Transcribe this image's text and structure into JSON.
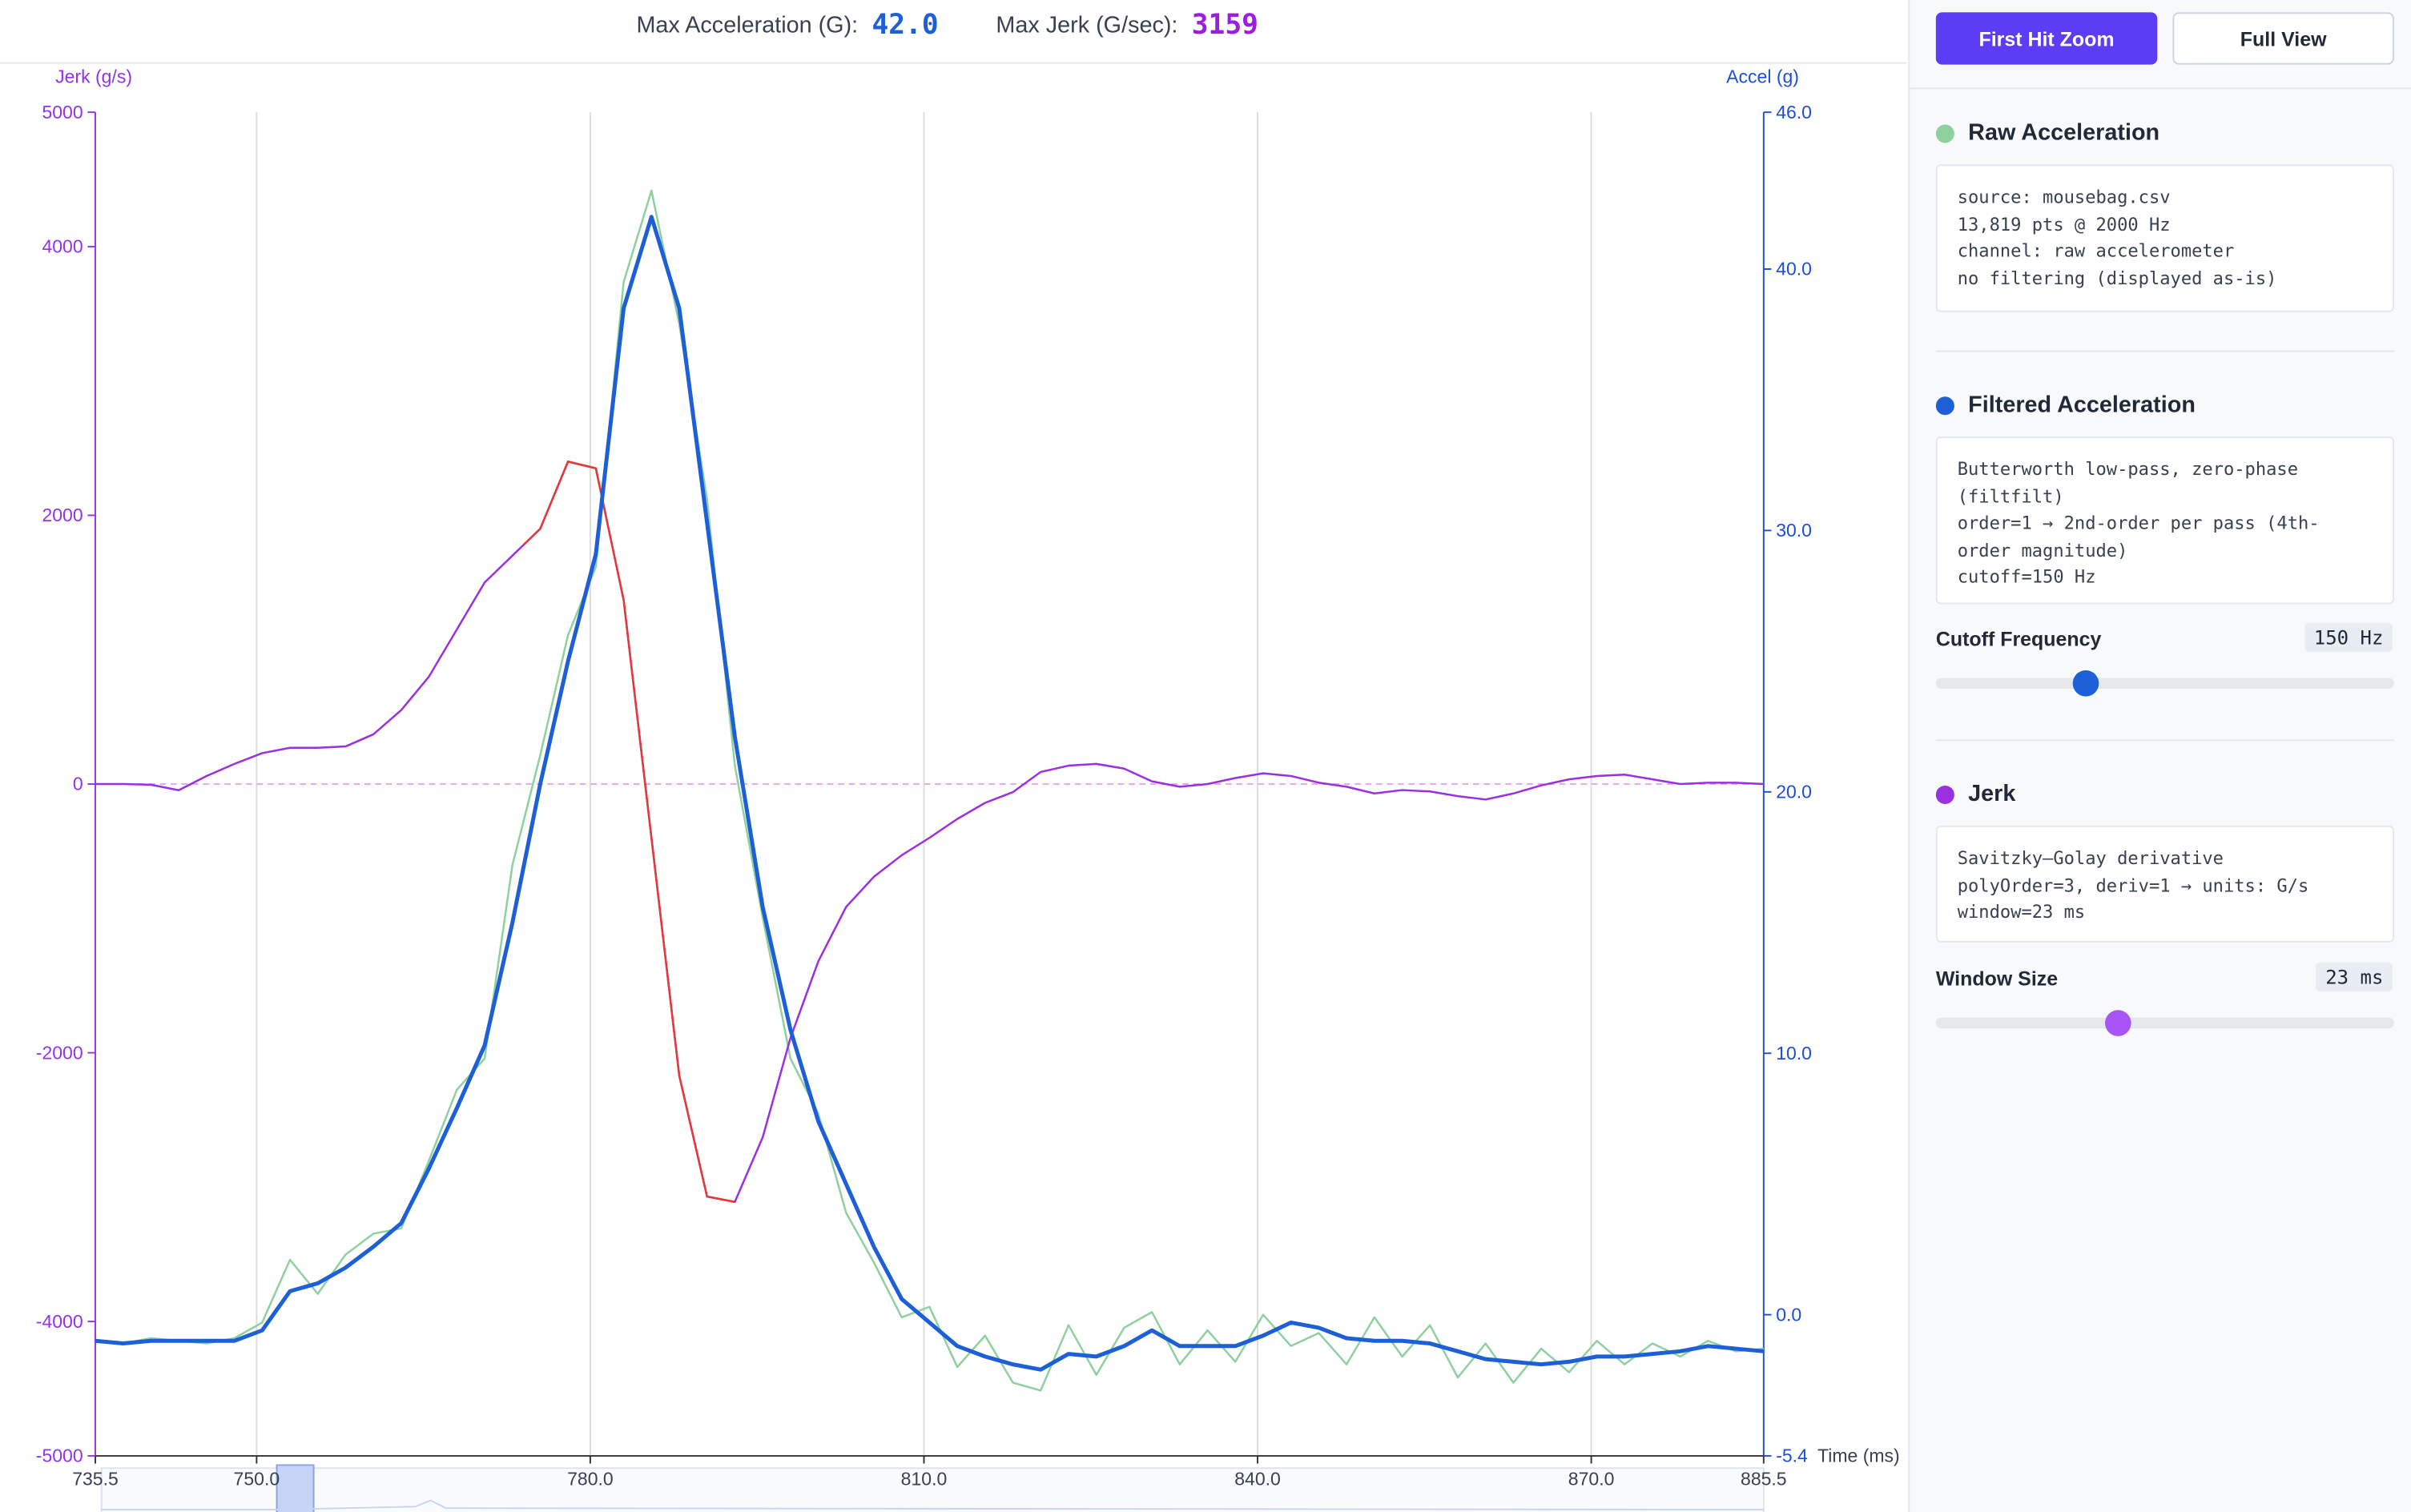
{
  "header": {
    "max_accel_label": "Max Acceleration (G):",
    "max_accel_value": "42.0",
    "max_jerk_label": "Max Jerk (G/sec):",
    "max_jerk_value": "3159"
  },
  "panel": {
    "buttons": [
      "First Hit Zoom",
      "Full View"
    ],
    "sections": [
      {
        "title": "Raw Acceleration",
        "lines": [
          "source: mousebag.csv",
          "13,819 pts @ 2000 Hz",
          "channel: raw accelerometer",
          "no filtering (displayed as-is)"
        ]
      },
      {
        "title": "Filtered Acceleration",
        "lines": [
          "Butterworth low-pass, zero-phase (filtfilt)",
          "order=1 → 2nd-order per pass (4th-order magnitude)",
          "cutoff=150 Hz"
        ],
        "control": "Cutoff Frequency",
        "control_value": "150 Hz"
      },
      {
        "title": "Jerk",
        "lines": [
          "Savitzky–Golay derivative",
          "polyOrder=3, deriv=1 → units: G/s",
          "window=23 ms"
        ],
        "control": "Window Size",
        "control_value": "23 ms"
      }
    ]
  },
  "chart_data": {
    "type": "line",
    "xlabel": "Time (ms)",
    "ylabel": "Jerk (g/s)",
    "y2label": "Accel (g)",
    "x": [
      735.5,
      738,
      740.5,
      743,
      745.5,
      748,
      750.5,
      753,
      755.5,
      758,
      760.5,
      763,
      765.5,
      768,
      770.5,
      773,
      775.5,
      778,
      780.5,
      783,
      785.5,
      788,
      790.5,
      793,
      795.5,
      798,
      800.5,
      803,
      805.5,
      808,
      810.5,
      813,
      815.5,
      818,
      820.5,
      823,
      825.5,
      828,
      830.5,
      833,
      835.5,
      838,
      840.5,
      843,
      845.5,
      848,
      850.5,
      853,
      855.5,
      858,
      860.5,
      863,
      865.5,
      868,
      870.5,
      873,
      875.5,
      878,
      880.5,
      883,
      885.5
    ],
    "xlim": [
      735.5,
      885.5
    ],
    "xticks": [
      735.5,
      {
        "value": 750,
        "label": "750.0"
      },
      {
        "value": 780,
        "label": "780.0"
      },
      {
        "value": 810,
        "label": "810.0"
      },
      {
        "value": 840,
        "label": "840.0"
      },
      {
        "value": 870,
        "label": "870.0"
      },
      885.5
    ],
    "ylim": [
      -5000,
      5000
    ],
    "yticks": [
      -5000,
      -4000,
      -2000,
      0,
      2000,
      4000,
      5000
    ],
    "y2lim": [
      -5.4,
      46.0
    ],
    "y2ticks": [
      -5.4,
      {
        "value": 0,
        "label": "0.0"
      },
      {
        "value": 10,
        "label": "10.0"
      },
      {
        "value": 20,
        "label": "20.0"
      },
      {
        "value": 30,
        "label": "30.0"
      },
      {
        "value": 40,
        "label": "40.0"
      },
      {
        "value": 46,
        "label": "46.0"
      }
    ],
    "zero_line": true,
    "grid": true,
    "series": [
      {
        "name": "Raw Acceleration",
        "color": "#8fd19e",
        "axis": "y2",
        "values": [
          -1.0,
          -1.1,
          -0.9,
          -1.0,
          -1.1,
          -0.9,
          -0.3,
          2.1,
          0.8,
          2.3,
          3.1,
          3.3,
          5.9,
          8.6,
          9.8,
          17.2,
          21.4,
          26.0,
          28.6,
          39.5,
          43.0,
          37.9,
          31.2,
          21.0,
          15.2,
          9.8,
          7.7,
          3.9,
          2.0,
          -0.1,
          0.3,
          -2.0,
          -0.8,
          -2.6,
          -2.9,
          -0.4,
          -2.3,
          -0.5,
          0.1,
          -1.9,
          -0.6,
          -1.8,
          0.0,
          -1.2,
          -0.7,
          -1.9,
          -0.1,
          -1.6,
          -0.4,
          -2.4,
          -1.1,
          -2.6,
          -1.3,
          -2.2,
          -1.0,
          -1.9,
          -1.1,
          -1.6,
          -1.0,
          -1.4,
          -1.3
        ]
      },
      {
        "name": "Filtered Acceleration",
        "color": "#1d5fd6",
        "axis": "y2",
        "values": [
          -1.0,
          -1.1,
          -1.0,
          -1.0,
          -1.0,
          -1.0,
          -0.6,
          0.9,
          1.2,
          1.8,
          2.6,
          3.5,
          5.6,
          7.9,
          10.3,
          15.0,
          20.3,
          25.0,
          29.1,
          38.5,
          42.0,
          38.5,
          30.3,
          22.1,
          15.6,
          10.9,
          7.4,
          5.0,
          2.6,
          0.6,
          -0.3,
          -1.2,
          -1.6,
          -1.9,
          -2.1,
          -1.5,
          -1.6,
          -1.2,
          -0.6,
          -1.2,
          -1.2,
          -1.2,
          -0.8,
          -0.3,
          -0.5,
          -0.9,
          -1.0,
          -1.0,
          -1.1,
          -1.4,
          -1.7,
          -1.8,
          -1.9,
          -1.8,
          -1.6,
          -1.6,
          -1.5,
          -1.4,
          -1.2,
          -1.3,
          -1.4
        ]
      },
      {
        "name": "Jerk",
        "color": "#9b30e0",
        "axis": "y",
        "highlight_color": "#e53935",
        "highlight_xlim": [
          774,
          793
        ],
        "values": [
          0,
          0,
          -5,
          -46,
          60,
          150,
          230,
          270,
          270,
          280,
          370,
          550,
          800,
          1150,
          1500,
          1700,
          1900,
          2400,
          2350,
          1370,
          -400,
          -2170,
          -3070,
          -3110,
          -2630,
          -1890,
          -1320,
          -915,
          -690,
          -530,
          -400,
          -260,
          -140,
          -60,
          90,
          137,
          150,
          115,
          20,
          -20,
          0,
          45,
          80,
          60,
          10,
          -20,
          -70,
          -45,
          -55,
          -90,
          -115,
          -70,
          -10,
          35,
          60,
          70,
          35,
          0,
          10,
          10,
          0
        ]
      }
    ]
  }
}
